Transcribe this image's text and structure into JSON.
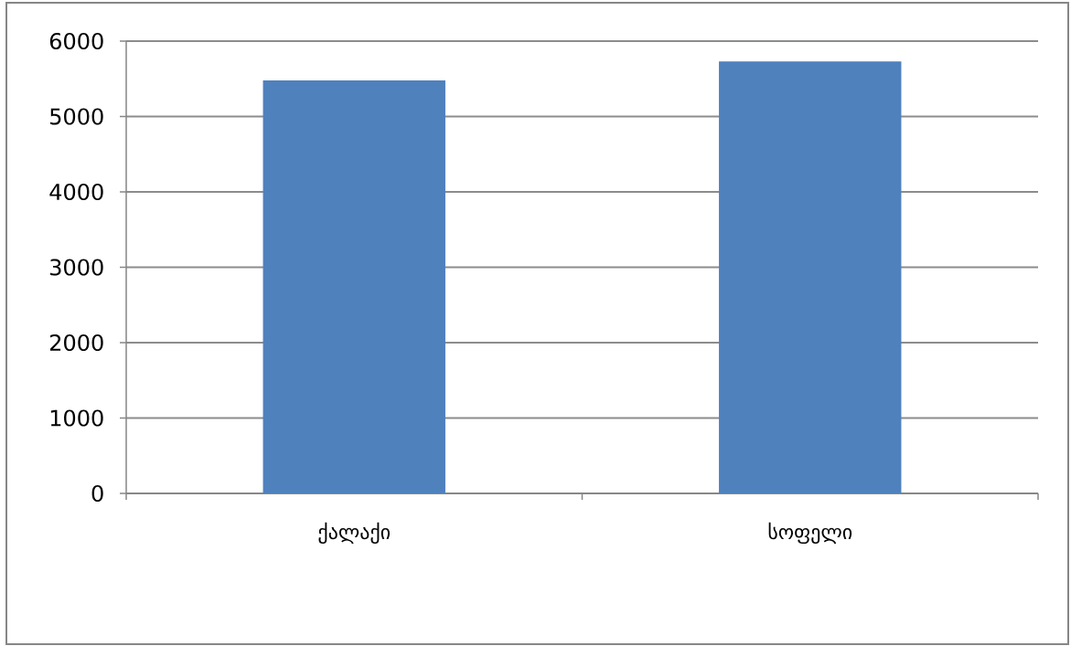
{
  "chart_data": {
    "type": "bar",
    "categories": [
      "ქალაქი",
      "სოფელი"
    ],
    "values": [
      5480,
      5730
    ],
    "color": "#4f81bd",
    "ylim": [
      0,
      6000
    ],
    "yticks": [
      0,
      1000,
      2000,
      3000,
      4000,
      5000,
      6000
    ],
    "grid": "y"
  }
}
